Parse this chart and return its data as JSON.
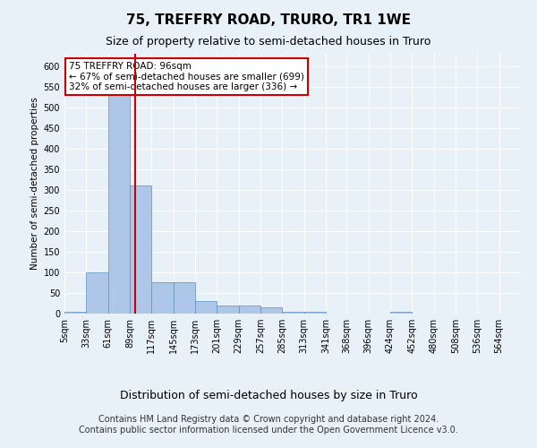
{
  "title": "75, TREFFRY ROAD, TRURO, TR1 1WE",
  "subtitle": "Size of property relative to semi-detached houses in Truro",
  "xlabel": "Distribution of semi-detached houses by size in Truro",
  "ylabel": "Number of semi-detached properties",
  "bin_edges": [
    5,
    33,
    61,
    89,
    117,
    145,
    173,
    201,
    229,
    257,
    285,
    313,
    341,
    368,
    396,
    424,
    452,
    480,
    508,
    536,
    564
  ],
  "bar_heights": [
    5,
    100,
    550,
    310,
    75,
    75,
    30,
    20,
    20,
    15,
    5,
    5,
    0,
    0,
    0,
    5,
    0,
    0,
    0,
    0
  ],
  "bar_color": "#aec6e8",
  "bar_edgecolor": "#5a8fc3",
  "property_size": 96,
  "property_line_color": "#cc0000",
  "annotation_line1": "75 TREFFRY ROAD: 96sqm",
  "annotation_line2": "← 67% of semi-detached houses are smaller (699)",
  "annotation_line3": "32% of semi-detached houses are larger (336) →",
  "annotation_box_edgecolor": "#cc0000",
  "yticks": [
    0,
    50,
    100,
    150,
    200,
    250,
    300,
    350,
    400,
    450,
    500,
    550,
    600
  ],
  "ylim": [
    0,
    630
  ],
  "footer_line1": "Contains HM Land Registry data © Crown copyright and database right 2024.",
  "footer_line2": "Contains public sector information licensed under the Open Government Licence v3.0.",
  "background_color": "#e8f0f8",
  "plot_background_color": "#e8f0f8",
  "grid_color": "#ffffff",
  "title_fontsize": 11,
  "subtitle_fontsize": 9,
  "ylabel_fontsize": 7.5,
  "xlabel_fontsize": 9,
  "footer_fontsize": 7,
  "tick_fontsize": 7,
  "annot_fontsize": 7.5
}
